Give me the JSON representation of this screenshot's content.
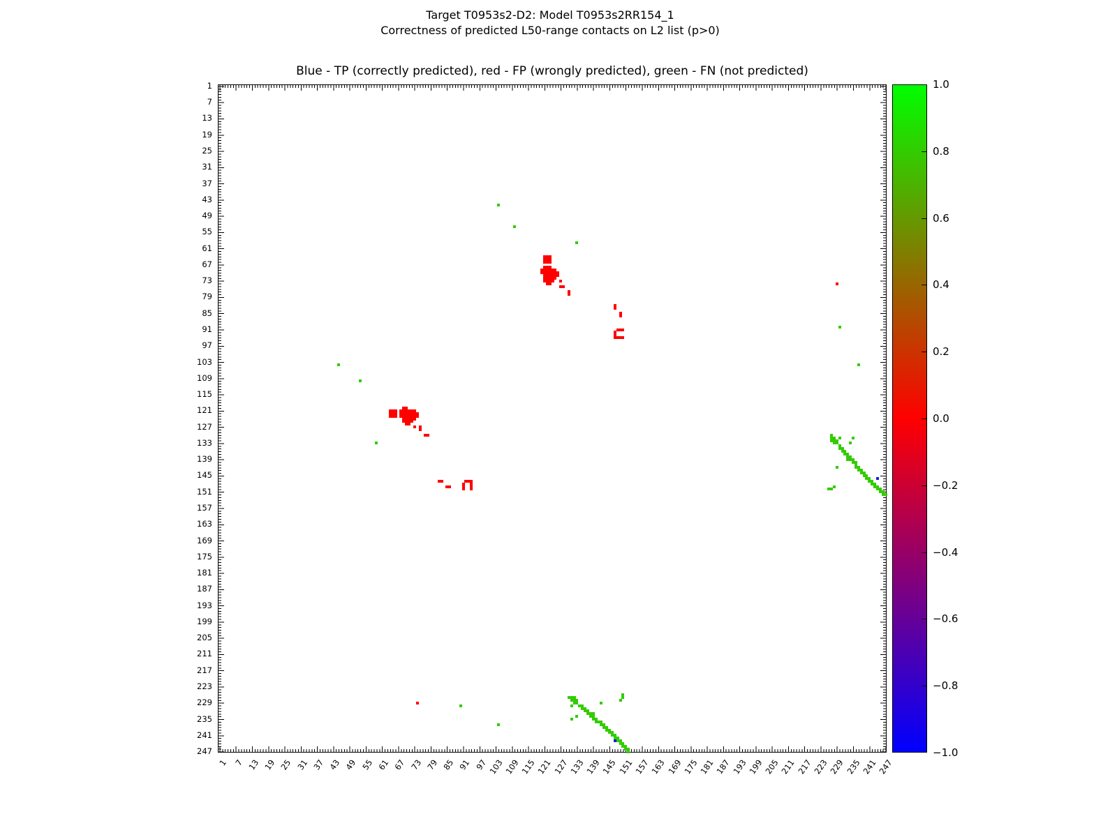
{
  "suptitle_line1": "Target T0953s2-D2: Model T0953s2RR154_1",
  "suptitle_line2": "Correctness of predicted L50-range contacts on L2 list (p>0)",
  "axes_title": "Blue - TP (correctly predicted), red - FP (wrongly predicted), green - FN (not predicted)",
  "chart_data": {
    "type": "heatmap",
    "title": "Blue - TP (correctly predicted), red - FP (wrongly predicted), green - FN (not predicted)",
    "suptitle": [
      "Target T0953s2-D2: Model T0953s2RR154_1",
      "Correctness of predicted L50-range contacts on L2 list (p>0)"
    ],
    "xlabel": "",
    "ylabel": "",
    "x_range": [
      1,
      247
    ],
    "y_range": [
      1,
      247
    ],
    "y_inverted": true,
    "grid": false,
    "tick_labels": [
      1,
      7,
      13,
      19,
      25,
      31,
      37,
      43,
      49,
      55,
      61,
      67,
      73,
      79,
      85,
      91,
      97,
      103,
      109,
      115,
      121,
      127,
      133,
      139,
      145,
      151,
      157,
      163,
      169,
      175,
      181,
      187,
      193,
      199,
      205,
      211,
      217,
      223,
      229,
      235,
      241,
      247
    ],
    "colorbar": {
      "position": "right",
      "tick_labels": [
        "1.0",
        "0.8",
        "0.6",
        "0.4",
        "0.2",
        "0.0",
        "−0.2",
        "−0.4",
        "−0.6",
        "−0.8",
        "−1.0"
      ],
      "gradient_stops": [
        {
          "value": 1.0,
          "color": "#00ff00"
        },
        {
          "value": 0.5,
          "color": "#7f7f00"
        },
        {
          "value": 0.0,
          "color": "#ff0000"
        },
        {
          "value": -0.5,
          "color": "#7f007f"
        },
        {
          "value": -1.0,
          "color": "#0000ff"
        }
      ]
    },
    "series": [
      {
        "name": "TP (correctly predicted)",
        "color": "#1122dd",
        "cells": [
          [
            147,
            243
          ],
          [
            244,
            146
          ]
        ]
      },
      {
        "name": "FP (wrongly predicted)",
        "color": "#ff0000",
        "pairs_mirrored": [
          [
            64,
            121
          ],
          [
            65,
            121
          ],
          [
            66,
            121
          ],
          [
            64,
            122
          ],
          [
            65,
            122
          ],
          [
            66,
            122
          ],
          [
            64,
            123
          ],
          [
            65,
            123
          ],
          [
            66,
            123
          ],
          [
            69,
            120
          ],
          [
            70,
            120
          ],
          [
            68,
            121
          ],
          [
            69,
            121
          ],
          [
            70,
            121
          ],
          [
            71,
            121
          ],
          [
            72,
            121
          ],
          [
            73,
            121
          ],
          [
            68,
            122
          ],
          [
            69,
            122
          ],
          [
            70,
            122
          ],
          [
            71,
            122
          ],
          [
            72,
            122
          ],
          [
            73,
            122
          ],
          [
            74,
            122
          ],
          [
            68,
            123
          ],
          [
            69,
            123
          ],
          [
            70,
            123
          ],
          [
            71,
            123
          ],
          [
            72,
            123
          ],
          [
            73,
            123
          ],
          [
            74,
            123
          ],
          [
            69,
            124
          ],
          [
            70,
            124
          ],
          [
            71,
            124
          ],
          [
            72,
            124
          ],
          [
            73,
            124
          ],
          [
            69,
            125
          ],
          [
            70,
            125
          ],
          [
            71,
            125
          ],
          [
            72,
            125
          ],
          [
            70,
            126
          ],
          [
            71,
            126
          ],
          [
            73,
            127
          ],
          [
            75,
            127
          ],
          [
            75,
            128
          ],
          [
            77,
            130
          ],
          [
            78,
            130
          ],
          [
            82,
            147
          ],
          [
            83,
            147
          ],
          [
            85,
            149
          ],
          [
            86,
            149
          ],
          [
            91,
            148
          ],
          [
            91,
            149
          ],
          [
            91,
            150
          ],
          [
            92,
            147
          ],
          [
            93,
            147
          ],
          [
            94,
            147
          ],
          [
            94,
            148
          ],
          [
            94,
            149
          ],
          [
            94,
            150
          ],
          [
            74,
            229
          ]
        ]
      },
      {
        "name": "FN (not predicted)",
        "color": "#33cc00",
        "pairs_mirrored": [
          [
            45,
            104
          ],
          [
            53,
            110
          ],
          [
            59,
            133
          ],
          [
            90,
            230
          ],
          [
            104,
            237
          ],
          [
            150,
            226
          ],
          [
            150,
            227
          ],
          [
            149,
            228
          ],
          [
            142,
            229
          ],
          [
            131,
            235
          ],
          [
            130,
            227
          ],
          [
            131,
            227
          ],
          [
            132,
            227
          ],
          [
            131,
            228
          ],
          [
            132,
            228
          ],
          [
            133,
            228
          ],
          [
            132,
            229
          ],
          [
            133,
            229
          ],
          [
            131,
            230
          ],
          [
            134,
            230
          ],
          [
            135,
            230
          ],
          [
            135,
            231
          ],
          [
            136,
            231
          ],
          [
            136,
            232
          ],
          [
            137,
            232
          ],
          [
            137,
            233
          ],
          [
            138,
            233
          ],
          [
            139,
            233
          ],
          [
            133,
            234
          ],
          [
            138,
            234
          ],
          [
            139,
            234
          ],
          [
            139,
            235
          ],
          [
            140,
            235
          ],
          [
            140,
            236
          ],
          [
            141,
            236
          ],
          [
            142,
            236
          ],
          [
            142,
            237
          ],
          [
            143,
            237
          ],
          [
            143,
            238
          ],
          [
            144,
            238
          ],
          [
            144,
            239
          ],
          [
            145,
            239
          ],
          [
            145,
            240
          ],
          [
            146,
            240
          ],
          [
            146,
            241
          ],
          [
            147,
            241
          ],
          [
            147,
            242
          ],
          [
            148,
            242
          ],
          [
            148,
            243
          ],
          [
            149,
            243
          ],
          [
            149,
            244
          ],
          [
            150,
            244
          ],
          [
            150,
            245
          ],
          [
            151,
            245
          ],
          [
            151,
            246
          ],
          [
            152,
            246
          ],
          [
            152,
            247
          ]
        ]
      }
    ]
  }
}
